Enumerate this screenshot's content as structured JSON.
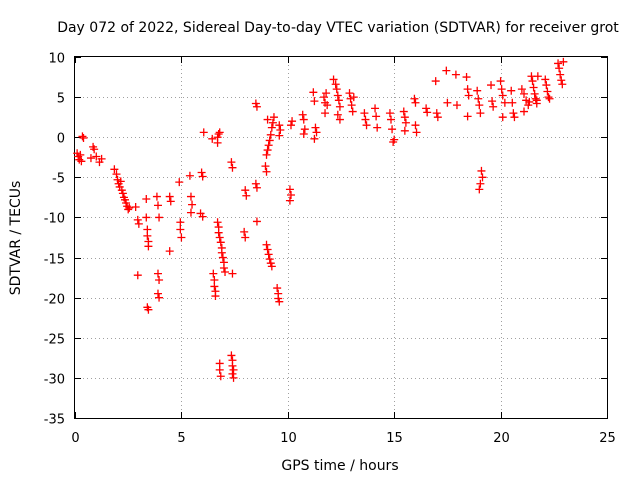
{
  "chart_data": {
    "type": "scatter",
    "title": "Day 072 of 2022, Sidereal Day-to-day VTEC variation (SDTVAR) for receiver grot",
    "xlabel": "GPS time / hours",
    "ylabel": "SDTVAR / TECUs",
    "xlim": [
      0,
      25
    ],
    "ylim": [
      -35,
      10
    ],
    "x_ticks": [
      0,
      5,
      10,
      15,
      20,
      25
    ],
    "y_ticks": [
      -35,
      -30,
      -25,
      -20,
      -15,
      -10,
      -5,
      0,
      5,
      10
    ],
    "x_tick_labels": [
      "0",
      "5",
      "10",
      "15",
      "20",
      "25"
    ],
    "y_tick_labels": [
      "-35",
      "-30",
      "-25",
      "-20",
      "-15",
      "-10",
      "-5",
      "0",
      "5",
      "10"
    ],
    "grid": true,
    "marker": "+",
    "color": "#ff0000",
    "series": [
      {
        "name": "SDTVAR",
        "points": [
          [
            0.1,
            -2.0
          ],
          [
            0.15,
            -2.4
          ],
          [
            0.2,
            -2.8
          ],
          [
            0.25,
            -2.2
          ],
          [
            0.3,
            -3.0
          ],
          [
            0.35,
            0.1
          ],
          [
            0.4,
            -0.1
          ],
          [
            0.75,
            -2.6
          ],
          [
            0.85,
            -1.2
          ],
          [
            0.9,
            -1.5
          ],
          [
            1.0,
            -2.4
          ],
          [
            1.15,
            -3.1
          ],
          [
            1.25,
            -2.7
          ],
          [
            1.85,
            -4.0
          ],
          [
            1.95,
            -4.6
          ],
          [
            2.0,
            -5.3
          ],
          [
            2.05,
            -5.8
          ],
          [
            2.1,
            -6.2
          ],
          [
            2.15,
            -5.5
          ],
          [
            2.2,
            -6.6
          ],
          [
            2.25,
            -7.0
          ],
          [
            2.3,
            -7.5
          ],
          [
            2.35,
            -7.8
          ],
          [
            2.4,
            -8.2
          ],
          [
            2.45,
            -8.6
          ],
          [
            2.5,
            -9.0
          ],
          [
            2.55,
            -8.8
          ],
          [
            2.85,
            -8.7
          ],
          [
            2.95,
            -10.3
          ],
          [
            3.0,
            -10.8
          ],
          [
            2.95,
            -17.2
          ],
          [
            3.35,
            -7.7
          ],
          [
            3.35,
            -10.0
          ],
          [
            3.4,
            -11.5
          ],
          [
            3.4,
            -12.3
          ],
          [
            3.45,
            -13.0
          ],
          [
            3.45,
            -13.6
          ],
          [
            3.4,
            -21.2
          ],
          [
            3.45,
            -21.5
          ],
          [
            3.85,
            -7.4
          ],
          [
            3.9,
            -8.5
          ],
          [
            3.95,
            -10.0
          ],
          [
            3.9,
            -17.0
          ],
          [
            3.95,
            -17.8
          ],
          [
            3.9,
            -19.5
          ],
          [
            3.95,
            -20.0
          ],
          [
            4.45,
            -7.4
          ],
          [
            4.5,
            -8.0
          ],
          [
            4.45,
            -14.2
          ],
          [
            4.9,
            -5.6
          ],
          [
            4.95,
            -10.6
          ],
          [
            4.95,
            -11.5
          ],
          [
            5.0,
            -12.5
          ],
          [
            5.4,
            -4.8
          ],
          [
            5.45,
            -7.4
          ],
          [
            5.5,
            -8.4
          ],
          [
            5.45,
            -9.4
          ],
          [
            5.95,
            -4.4
          ],
          [
            6.0,
            -4.9
          ],
          [
            5.9,
            -9.5
          ],
          [
            6.0,
            -9.9
          ],
          [
            6.05,
            0.6
          ],
          [
            6.45,
            -0.2
          ],
          [
            6.7,
            0.0
          ],
          [
            6.75,
            0.4
          ],
          [
            6.8,
            0.6
          ],
          [
            6.7,
            -0.7
          ],
          [
            6.5,
            -17.0
          ],
          [
            6.55,
            -17.8
          ],
          [
            6.55,
            -18.6
          ],
          [
            6.6,
            -19.2
          ],
          [
            6.6,
            -19.8
          ],
          [
            6.7,
            -10.6
          ],
          [
            6.75,
            -11.2
          ],
          [
            6.75,
            -11.9
          ],
          [
            6.8,
            -12.5
          ],
          [
            6.85,
            -13.1
          ],
          [
            6.9,
            -13.8
          ],
          [
            6.9,
            -14.4
          ],
          [
            6.95,
            -15.0
          ],
          [
            7.0,
            -15.6
          ],
          [
            7.0,
            -16.3
          ],
          [
            7.05,
            -16.8
          ],
          [
            6.8,
            -28.2
          ],
          [
            6.8,
            -29.0
          ],
          [
            6.85,
            -29.8
          ],
          [
            7.35,
            -3.1
          ],
          [
            7.4,
            -3.8
          ],
          [
            7.4,
            -17.0
          ],
          [
            7.35,
            -27.2
          ],
          [
            7.4,
            -27.8
          ],
          [
            7.4,
            -28.5
          ],
          [
            7.45,
            -29.0
          ],
          [
            7.4,
            -29.5
          ],
          [
            7.45,
            -30.0
          ],
          [
            8.0,
            -6.6
          ],
          [
            8.05,
            -7.3
          ],
          [
            7.95,
            -11.8
          ],
          [
            8.0,
            -12.5
          ],
          [
            8.5,
            4.2
          ],
          [
            8.55,
            3.8
          ],
          [
            8.5,
            -5.8
          ],
          [
            8.55,
            -6.3
          ],
          [
            8.55,
            -10.5
          ],
          [
            8.95,
            -3.6
          ],
          [
            9.0,
            -4.3
          ],
          [
            9.0,
            -2.2
          ],
          [
            9.05,
            -1.6
          ],
          [
            9.1,
            -1.0
          ],
          [
            9.15,
            -0.4
          ],
          [
            9.2,
            0.3
          ],
          [
            9.25,
            1.2
          ],
          [
            9.3,
            1.8
          ],
          [
            9.35,
            2.5
          ],
          [
            9.05,
            2.2
          ],
          [
            9.0,
            -13.4
          ],
          [
            9.05,
            -14.0
          ],
          [
            9.1,
            -14.6
          ],
          [
            9.15,
            -15.2
          ],
          [
            9.2,
            -15.7
          ],
          [
            9.25,
            -16.1
          ],
          [
            9.5,
            -18.8
          ],
          [
            9.55,
            -19.5
          ],
          [
            9.55,
            -20.1
          ],
          [
            9.6,
            -20.5
          ],
          [
            9.6,
            1.5
          ],
          [
            9.65,
            0.9
          ],
          [
            9.6,
            0.2
          ],
          [
            10.1,
            -6.5
          ],
          [
            10.15,
            -7.2
          ],
          [
            10.1,
            -7.9
          ],
          [
            10.2,
            2.0
          ],
          [
            10.15,
            1.5
          ],
          [
            10.7,
            2.8
          ],
          [
            10.75,
            2.2
          ],
          [
            10.8,
            1.0
          ],
          [
            10.75,
            0.4
          ],
          [
            11.2,
            5.6
          ],
          [
            11.25,
            4.5
          ],
          [
            11.3,
            1.2
          ],
          [
            11.35,
            0.6
          ],
          [
            11.25,
            -0.2
          ],
          [
            11.7,
            5.0
          ],
          [
            11.75,
            4.3
          ],
          [
            11.8,
            5.5
          ],
          [
            11.75,
            3.0
          ],
          [
            11.85,
            4.0
          ],
          [
            12.15,
            7.2
          ],
          [
            12.25,
            6.6
          ],
          [
            12.3,
            6.0
          ],
          [
            12.35,
            5.2
          ],
          [
            12.4,
            4.6
          ],
          [
            12.45,
            3.8
          ],
          [
            12.35,
            2.8
          ],
          [
            12.45,
            2.2
          ],
          [
            12.9,
            5.5
          ],
          [
            12.95,
            4.8
          ],
          [
            13.0,
            4.0
          ],
          [
            13.05,
            3.2
          ],
          [
            13.1,
            5.0
          ],
          [
            13.6,
            3.0
          ],
          [
            13.65,
            2.2
          ],
          [
            13.7,
            1.5
          ],
          [
            14.1,
            3.6
          ],
          [
            14.15,
            2.6
          ],
          [
            14.2,
            1.2
          ],
          [
            14.8,
            3.0
          ],
          [
            14.85,
            2.2
          ],
          [
            14.9,
            1.0
          ],
          [
            14.95,
            -0.6
          ],
          [
            15.0,
            -0.3
          ],
          [
            15.45,
            3.2
          ],
          [
            15.5,
            2.5
          ],
          [
            15.55,
            1.8
          ],
          [
            15.5,
            0.8
          ],
          [
            15.95,
            4.8
          ],
          [
            16.0,
            4.3
          ],
          [
            16.05,
            0.6
          ],
          [
            16.0,
            1.5
          ],
          [
            16.5,
            3.6
          ],
          [
            16.55,
            3.1
          ],
          [
            16.95,
            7.0
          ],
          [
            17.0,
            3.0
          ],
          [
            17.05,
            2.5
          ],
          [
            17.45,
            8.3
          ],
          [
            17.5,
            4.3
          ],
          [
            17.9,
            7.8
          ],
          [
            17.95,
            4.0
          ],
          [
            18.4,
            7.5
          ],
          [
            18.45,
            6.0
          ],
          [
            18.5,
            5.2
          ],
          [
            18.45,
            2.6
          ],
          [
            18.9,
            5.8
          ],
          [
            18.95,
            4.8
          ],
          [
            19.0,
            4.0
          ],
          [
            19.05,
            3.0
          ],
          [
            19.1,
            -4.2
          ],
          [
            19.15,
            -5.0
          ],
          [
            19.05,
            -5.8
          ],
          [
            19.0,
            -6.5
          ],
          [
            19.55,
            6.5
          ],
          [
            19.6,
            4.5
          ],
          [
            19.65,
            3.8
          ],
          [
            20.0,
            7.0
          ],
          [
            20.05,
            6.0
          ],
          [
            20.1,
            5.2
          ],
          [
            20.2,
            4.3
          ],
          [
            20.1,
            2.5
          ],
          [
            20.5,
            5.8
          ],
          [
            20.55,
            4.3
          ],
          [
            20.6,
            3.0
          ],
          [
            20.65,
            2.5
          ],
          [
            21.0,
            6.0
          ],
          [
            21.1,
            5.4
          ],
          [
            21.2,
            4.6
          ],
          [
            21.3,
            4.0
          ],
          [
            21.1,
            3.2
          ],
          [
            21.35,
            4.4
          ],
          [
            21.45,
            7.6
          ],
          [
            21.5,
            7.0
          ],
          [
            21.55,
            6.2
          ],
          [
            21.6,
            5.4
          ],
          [
            21.65,
            4.8
          ],
          [
            21.7,
            4.2
          ],
          [
            21.75,
            7.6
          ],
          [
            21.7,
            4.6
          ],
          [
            22.1,
            7.2
          ],
          [
            22.15,
            6.5
          ],
          [
            22.2,
            5.7
          ],
          [
            22.25,
            5.0
          ],
          [
            22.3,
            4.8
          ],
          [
            22.7,
            9.2
          ],
          [
            22.75,
            8.6
          ],
          [
            22.8,
            7.8
          ],
          [
            22.85,
            7.1
          ],
          [
            22.9,
            6.6
          ],
          [
            22.95,
            9.4
          ]
        ]
      }
    ]
  }
}
